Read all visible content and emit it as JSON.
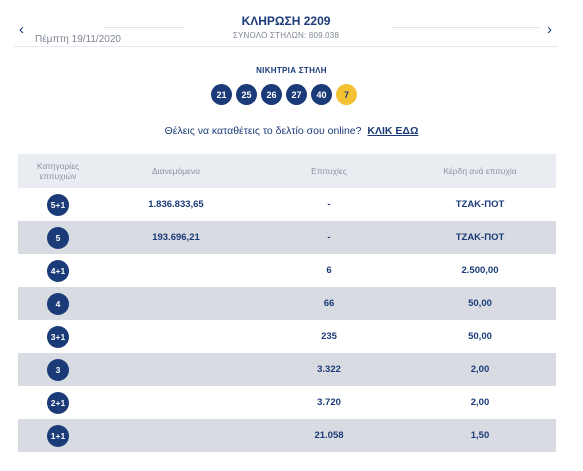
{
  "header": {
    "prev_icon": "chevron-left-icon",
    "next_icon": "chevron-right-icon",
    "prev_arrow": "‹",
    "next_arrow": "›",
    "title": "ΚΛΗΡΩΣΗ 2209",
    "subtitle": "ΣΥΝΟΛΟ ΣΤΗΛΩΝ: 809.038",
    "date": "Πέμπτη 19/11/2020"
  },
  "winning": {
    "label": "ΝΙΚΗΤΡΙΑ ΣΤΗΛΗ",
    "numbers": [
      "21",
      "25",
      "26",
      "27",
      "40"
    ],
    "joker": "7"
  },
  "online": {
    "text": "Θέλεις να καταθέτεις το δελτίο σου online?",
    "link": "ΚΛΙΚ ΕΔΩ"
  },
  "table": {
    "headers": {
      "category_line1": "Κατηγορίες",
      "category_line2": "επιτυχιών",
      "distributed": "Διανεμόμενα",
      "winners": "Επιτυχίες",
      "prize": "Κέρδη ανά επιτυχία"
    },
    "rows": [
      {
        "cat": "5+1",
        "distributed": "1.836.833,65",
        "winners": "-",
        "prize": "ΤΖΑΚ-ΠΟΤ"
      },
      {
        "cat": "5",
        "distributed": "193.696,21",
        "winners": "-",
        "prize": "ΤΖΑΚ-ΠΟΤ"
      },
      {
        "cat": "4+1",
        "distributed": "",
        "winners": "6",
        "prize": "2.500,00"
      },
      {
        "cat": "4",
        "distributed": "",
        "winners": "66",
        "prize": "50,00"
      },
      {
        "cat": "3+1",
        "distributed": "",
        "winners": "235",
        "prize": "50,00"
      },
      {
        "cat": "3",
        "distributed": "",
        "winners": "3.322",
        "prize": "2,00"
      },
      {
        "cat": "2+1",
        "distributed": "",
        "winners": "3.720",
        "prize": "2,00"
      },
      {
        "cat": "1+1",
        "distributed": "",
        "winners": "21.058",
        "prize": "1,50"
      }
    ]
  },
  "colors": {
    "brand_blue": "#1a3a78",
    "joker_yellow": "#f2c233",
    "row_shade": "#d8dbe1",
    "header_bg": "#e9ecf1"
  }
}
